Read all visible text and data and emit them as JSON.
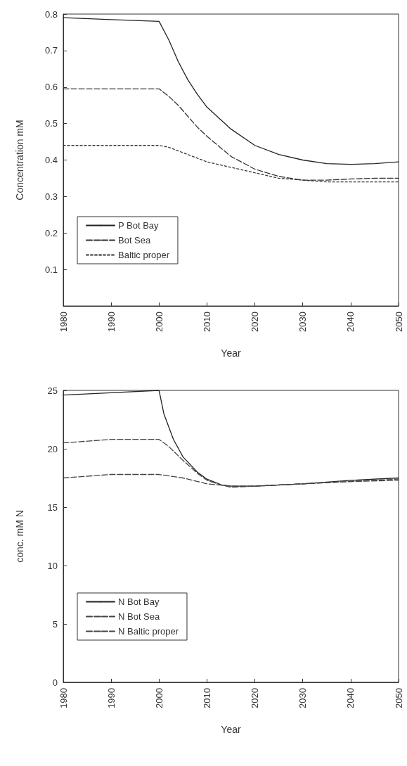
{
  "chart_data": [
    {
      "type": "line",
      "xlabel": "Year",
      "ylabel": "Concentration mM",
      "xlim": [
        1980,
        2050
      ],
      "xticks": [
        1980,
        1990,
        2000,
        2010,
        2020,
        2030,
        2040,
        2050
      ],
      "ylim": [
        0,
        0.8
      ],
      "yticks": [
        0.1,
        0.2,
        0.3,
        0.4,
        0.5,
        0.6,
        0.7,
        0.8
      ],
      "grid": false,
      "legend": "bottom left",
      "marker": "none",
      "x": [
        1980,
        1990,
        2000,
        2002,
        2004,
        2006,
        2008,
        2010,
        2015,
        2020,
        2025,
        2030,
        2035,
        2040,
        2045,
        2050
      ],
      "series": [
        {
          "name": "P Bot Bay",
          "color": "#222222",
          "line_style": "solid",
          "values": [
            0.79,
            0.785,
            0.78,
            0.73,
            0.67,
            0.62,
            0.58,
            0.545,
            0.485,
            0.44,
            0.415,
            0.4,
            0.39,
            0.388,
            0.39,
            0.395
          ]
        },
        {
          "name": "Bot Sea",
          "color": "#333333",
          "line_style": "dashed",
          "values": [
            0.595,
            0.595,
            0.595,
            0.575,
            0.55,
            0.52,
            0.49,
            0.465,
            0.41,
            0.375,
            0.355,
            0.345,
            0.345,
            0.348,
            0.35,
            0.35
          ]
        },
        {
          "name": "Baltic proper",
          "color": "#333333",
          "line_style": "dotted",
          "values": [
            0.44,
            0.44,
            0.44,
            0.435,
            0.425,
            0.415,
            0.405,
            0.395,
            0.38,
            0.365,
            0.35,
            0.345,
            0.34,
            0.34,
            0.34,
            0.34
          ]
        }
      ]
    },
    {
      "type": "line",
      "xlabel": "Year",
      "ylabel": "conc. mM N",
      "xlim": [
        1980,
        2050
      ],
      "xticks": [
        1980,
        1990,
        2000,
        2010,
        2020,
        2030,
        2040,
        2050
      ],
      "ylim": [
        0,
        25
      ],
      "yticks": [
        0,
        5,
        10,
        15,
        20,
        25
      ],
      "grid": false,
      "legend": "bottom left",
      "marker": "none",
      "series": [
        {
          "name": "N Bot Bay",
          "color": "#222222",
          "line_style": "solid",
          "x": [
            1980,
            1990,
            2000,
            2001,
            2003,
            2005,
            2008,
            2010,
            2013,
            2015,
            2020,
            2030,
            2040,
            2050
          ],
          "values": [
            24.6,
            24.8,
            25,
            23,
            20.8,
            19.3,
            18,
            17.4,
            16.9,
            16.8,
            16.8,
            17,
            17.3,
            17.5
          ]
        },
        {
          "name": "N Bot Sea",
          "color": "#444444",
          "line_style": "dashed",
          "x": [
            1980,
            1990,
            2000,
            2002,
            2005,
            2008,
            2010,
            2013,
            2015,
            2020,
            2030,
            2040,
            2050
          ],
          "values": [
            20.5,
            20.8,
            20.8,
            20.2,
            19,
            17.9,
            17.3,
            16.9,
            16.7,
            16.8,
            17,
            17.2,
            17.3
          ]
        },
        {
          "name": "N Baltic proper",
          "color": "#444444",
          "line_style": "dashed",
          "x": [
            1980,
            1990,
            2000,
            2005,
            2010,
            2015,
            2020,
            2030,
            2040,
            2050
          ],
          "values": [
            17.5,
            17.8,
            17.8,
            17.5,
            17,
            16.8,
            16.8,
            17,
            17.2,
            17.4
          ]
        }
      ]
    }
  ]
}
